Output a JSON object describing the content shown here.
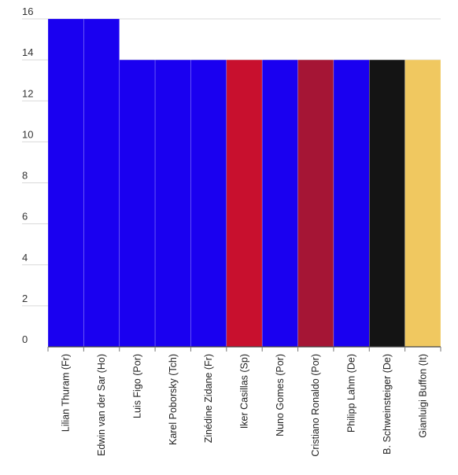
{
  "chart_data": {
    "type": "bar",
    "title": "",
    "xlabel": "",
    "ylabel": "",
    "ylim": [
      0,
      16
    ],
    "yticks": [
      0,
      2,
      4,
      6,
      8,
      10,
      12,
      14,
      16
    ],
    "grid": true,
    "legend": "none",
    "categories": [
      "Lilian Thuram (Fr)",
      "Edwin van der Sar (Ho)",
      "Luis Figo (Por)",
      "Karel Poborsky (Tch)",
      "Zinédine Zidane (Fr)",
      "Iker Casillas (Sp)",
      "Nuno Gomes (Por)",
      "Cristiano Ronaldo (Por)",
      "Philipp Lahm (De)",
      "B. Schweinsteiger (De)",
      "Gianluigi Buffon (It)"
    ],
    "values": [
      16,
      16,
      14,
      14,
      14,
      14,
      14,
      14,
      14,
      14,
      14
    ],
    "colors": [
      "#1a00f0",
      "#1a00f0",
      "#1a00f0",
      "#1a00f0",
      "#1a00f0",
      "#c8102e",
      "#1a00f0",
      "#a51535",
      "#1a00f0",
      "#141414",
      "#f0c860"
    ]
  }
}
